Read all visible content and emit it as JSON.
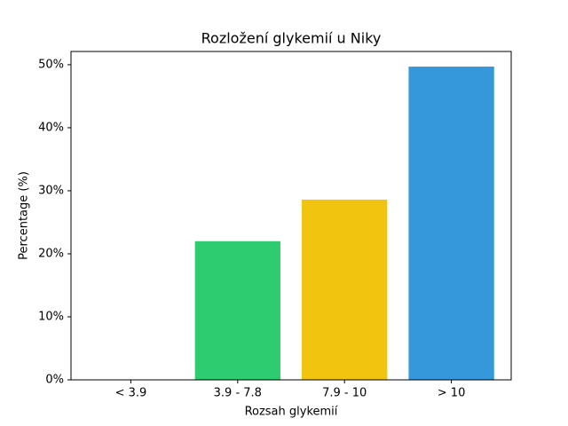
{
  "chart_data": {
    "type": "bar",
    "title": "Rozložení glykemií u  Niky",
    "x_label": "Rozsah glykemií",
    "y_label": "Percentage (%)",
    "categories": [
      "< 3.9",
      "3.9 - 7.8",
      "7.9 - 10",
      "> 10"
    ],
    "values": [
      0,
      22.0,
      28.6,
      49.7
    ],
    "colors": [
      "#e74c3c",
      "#2ecc71",
      "#f1c40f",
      "#3498db"
    ],
    "ylim": [
      0,
      52.1
    ],
    "yticks": [
      {
        "value": 0,
        "label": "0%"
      },
      {
        "value": 10,
        "label": "10%"
      },
      {
        "value": 20,
        "label": "20%"
      },
      {
        "value": 30,
        "label": "30%"
      },
      {
        "value": 40,
        "label": "40%"
      },
      {
        "value": 50,
        "label": "50%"
      }
    ]
  }
}
